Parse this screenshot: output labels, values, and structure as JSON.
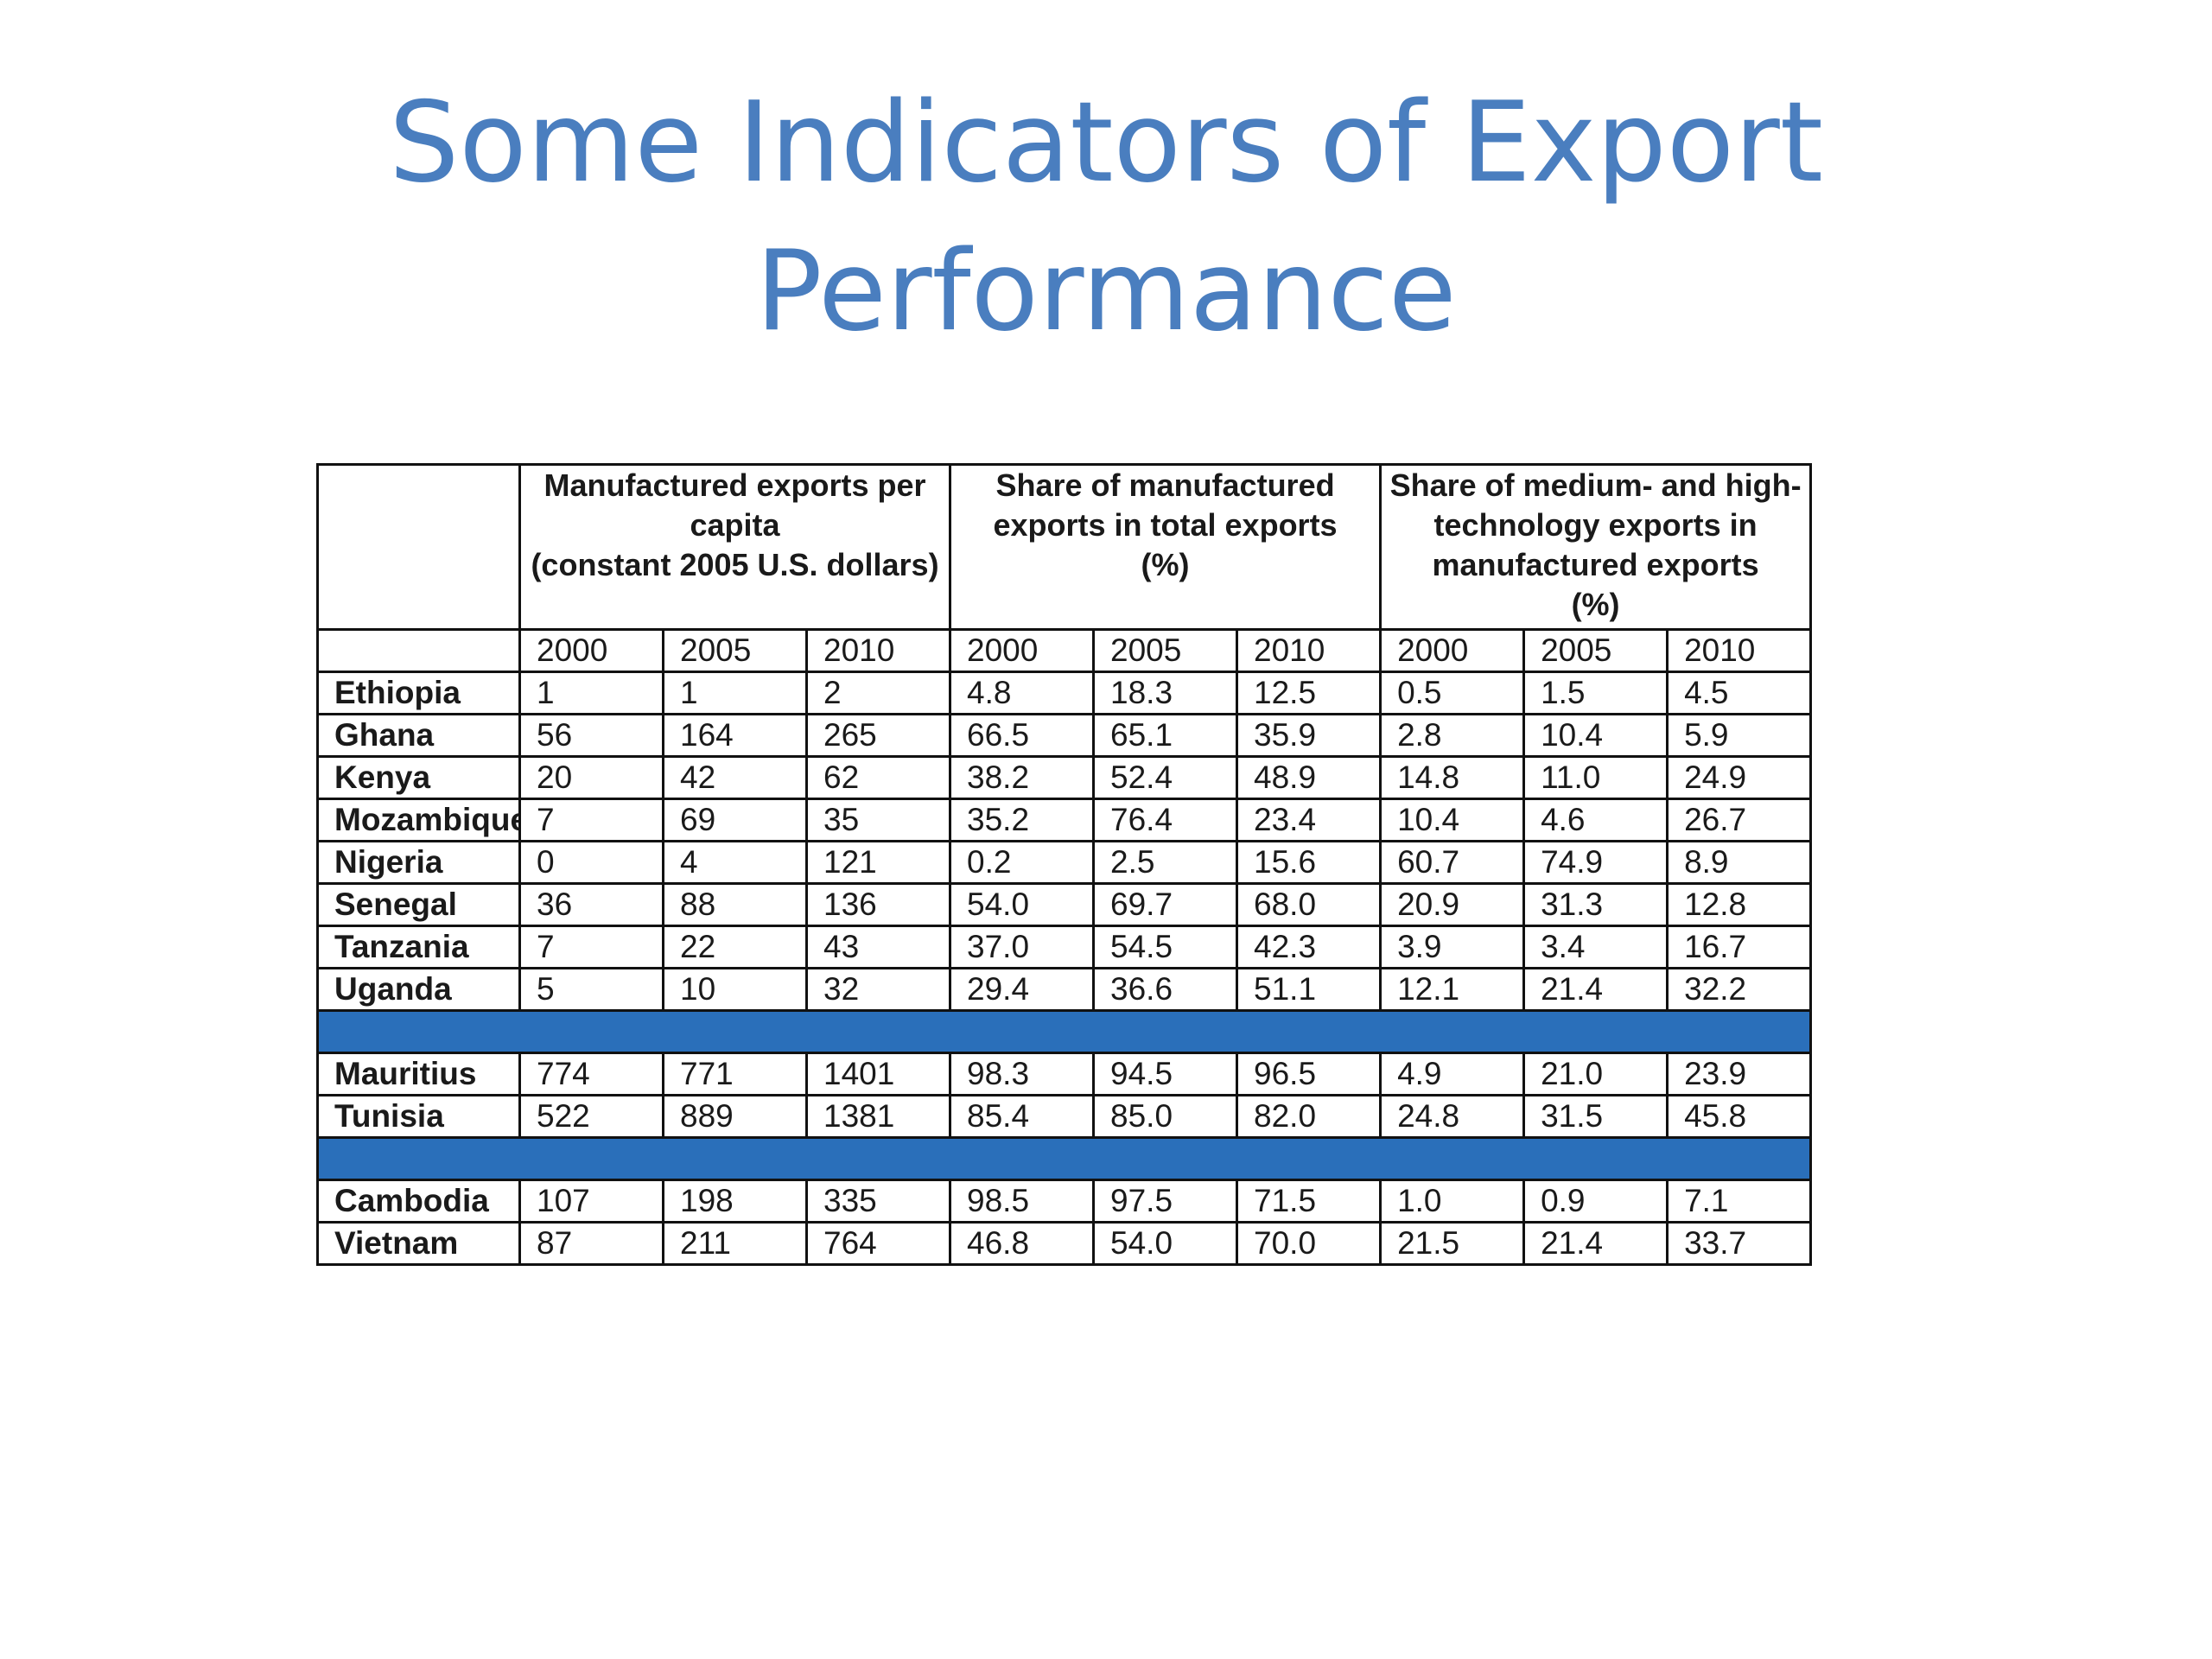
{
  "title": {
    "line1": "Some Indicators of Export",
    "line2": "Performance"
  },
  "table": {
    "corner": "",
    "groups": [
      {
        "lines": [
          "Manufactured exports per",
          "capita",
          "(constant 2005 U.S. dollars)"
        ]
      },
      {
        "lines": [
          "Share of manufactured",
          "exports in total exports",
          "(%)"
        ]
      },
      {
        "lines": [
          "Share of medium- and high-",
          "technology exports in",
          "manufactured exports",
          "(%)"
        ]
      }
    ],
    "years": [
      "2000",
      "2005",
      "2010",
      "2000",
      "2005",
      "2010",
      "2000",
      "2005",
      "2010"
    ],
    "separator_color": "#2a6fba",
    "blocks": [
      [
        {
          "country": "Ethiopia",
          "values": [
            "1",
            "1",
            "2",
            "4.8",
            "18.3",
            "12.5",
            "0.5",
            "1.5",
            "4.5"
          ]
        },
        {
          "country": "Ghana",
          "values": [
            "56",
            "164",
            "265",
            "66.5",
            "65.1",
            "35.9",
            "2.8",
            "10.4",
            "5.9"
          ]
        },
        {
          "country": "Kenya",
          "values": [
            "20",
            "42",
            "62",
            "38.2",
            "52.4",
            "48.9",
            "14.8",
            "11.0",
            "24.9"
          ]
        },
        {
          "country": "Mozambique",
          "values": [
            "7",
            "69",
            "35",
            "35.2",
            "76.4",
            "23.4",
            "10.4",
            "4.6",
            "26.7"
          ]
        },
        {
          "country": "Nigeria",
          "values": [
            "0",
            "4",
            "121",
            "0.2",
            "2.5",
            "15.6",
            "60.7",
            "74.9",
            "8.9"
          ]
        },
        {
          "country": "Senegal",
          "values": [
            "36",
            "88",
            "136",
            "54.0",
            "69.7",
            "68.0",
            "20.9",
            "31.3",
            "12.8"
          ]
        },
        {
          "country": "Tanzania",
          "values": [
            "7",
            "22",
            "43",
            "37.0",
            "54.5",
            "42.3",
            "3.9",
            "3.4",
            "16.7"
          ]
        },
        {
          "country": "Uganda",
          "values": [
            "5",
            "10",
            "32",
            "29.4",
            "36.6",
            "51.1",
            "12.1",
            "21.4",
            "32.2"
          ]
        }
      ],
      [
        {
          "country": "Mauritius",
          "values": [
            "774",
            "771",
            "1401",
            "98.3",
            "94.5",
            "96.5",
            "4.9",
            "21.0",
            "23.9"
          ]
        },
        {
          "country": "Tunisia",
          "values": [
            "522",
            "889",
            "1381",
            "85.4",
            "85.0",
            "82.0",
            "24.8",
            "31.5",
            "45.8"
          ]
        }
      ],
      [
        {
          "country": "Cambodia",
          "values": [
            "107",
            "198",
            "335",
            "98.5",
            "97.5",
            "71.5",
            "1.0",
            "0.9",
            "7.1"
          ]
        },
        {
          "country": "Vietnam",
          "values": [
            "87",
            "211",
            "764",
            "46.8",
            "54.0",
            "70.0",
            "21.5",
            "21.4",
            "33.7"
          ]
        }
      ]
    ]
  }
}
